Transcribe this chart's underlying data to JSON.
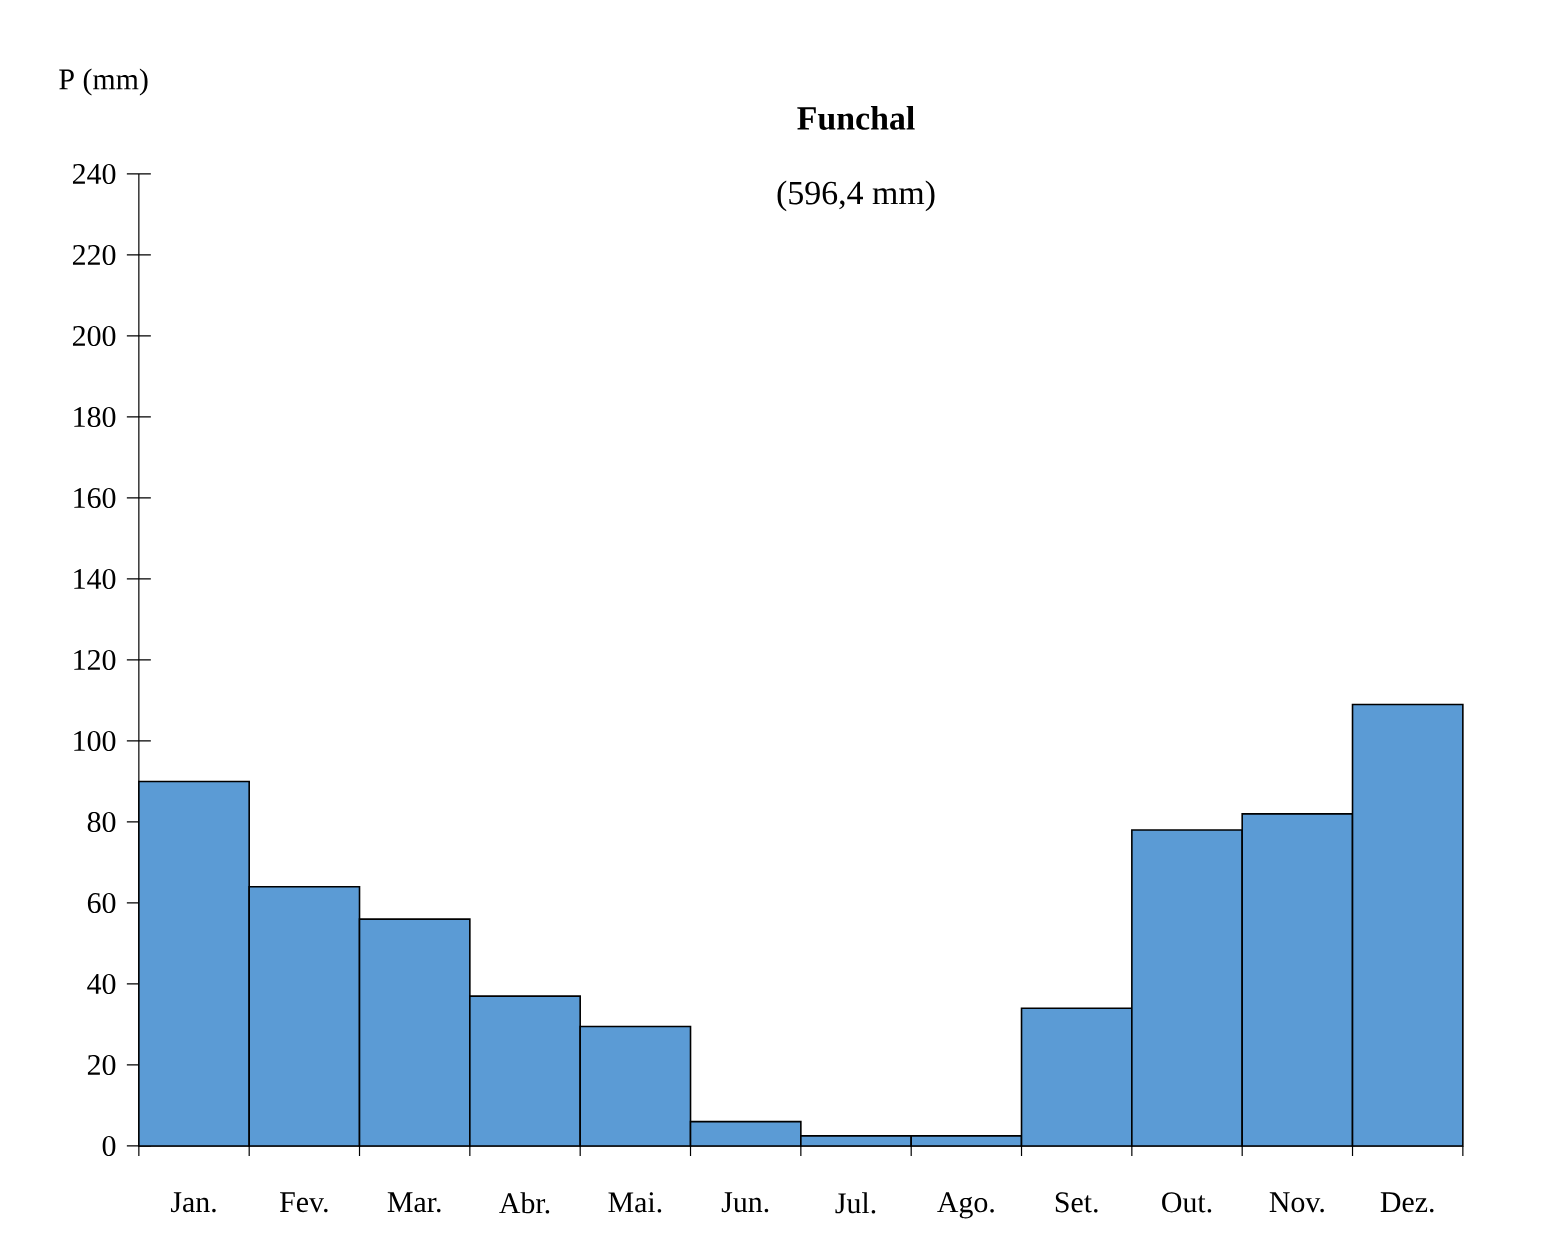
{
  "chart_data": {
    "type": "bar",
    "title": "**Funchal**",
    "subtitle": "(596,4 mm)",
    "ylabel": "P (mm)",
    "categories": [
      "Jan.",
      "Fev.",
      "Mar.",
      "Abr.",
      "Mai.",
      "Jun.",
      "Jul.",
      "Ago.",
      "Set.",
      "Out.",
      "Nov.",
      "Dez."
    ],
    "values": [
      90,
      64,
      56,
      37,
      29.5,
      6,
      2.5,
      2.5,
      34,
      78,
      82,
      109
    ],
    "color": "#5b9bd5",
    "ylim": [
      0,
      240
    ],
    "yticks": [
      0,
      20,
      40,
      60,
      80,
      100,
      120,
      140,
      160,
      180,
      200,
      220,
      240
    ],
    "grid": false
  }
}
